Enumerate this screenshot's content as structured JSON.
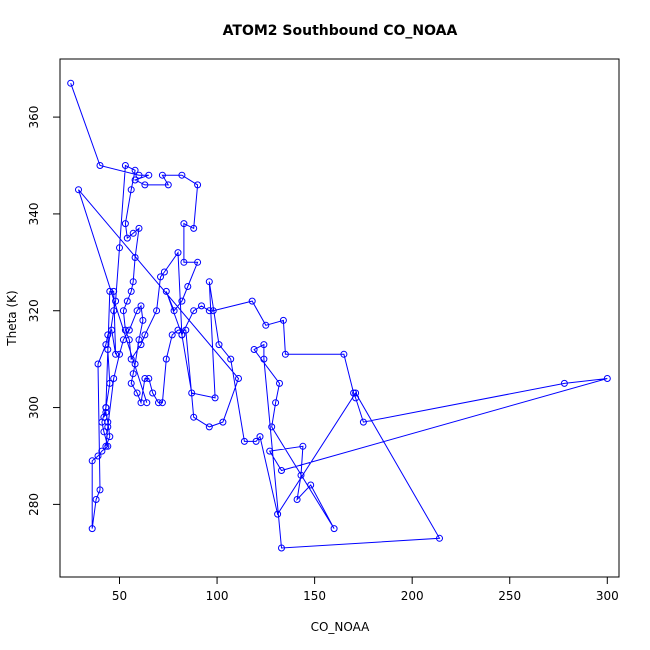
{
  "chart_data": {
    "type": "line",
    "title": "ATOM2 Southbound CO_NOAA",
    "xlabel": "CO_NOAA",
    "ylabel": "Theta (K)",
    "xlim": [
      19.5,
      306
    ],
    "ylim": [
      265,
      372
    ],
    "xticks": [
      50,
      100,
      150,
      200,
      250,
      300
    ],
    "yticks": [
      280,
      300,
      320,
      340,
      360
    ],
    "grid": false,
    "color": "#0000ff",
    "series": [
      {
        "points": [
          [
            25,
            367
          ],
          [
            40,
            350
          ],
          [
            60,
            348
          ],
          [
            65,
            348
          ],
          [
            58,
            347
          ],
          [
            63,
            346
          ],
          [
            75,
            346
          ],
          [
            72,
            348
          ],
          [
            82,
            348
          ],
          [
            90,
            346
          ],
          [
            88,
            337
          ],
          [
            83,
            338
          ],
          [
            83,
            330
          ],
          [
            90,
            330
          ],
          [
            85,
            325
          ],
          [
            82,
            322
          ],
          [
            78,
            320
          ],
          [
            74,
            324
          ],
          [
            82,
            315
          ],
          [
            88,
            320
          ],
          [
            92,
            321
          ],
          [
            96,
            320
          ],
          [
            98,
            320
          ],
          [
            118,
            322
          ],
          [
            125,
            317
          ],
          [
            134,
            318
          ],
          [
            135,
            311
          ],
          [
            165,
            311
          ],
          [
            170,
            303
          ],
          [
            171,
            302
          ],
          [
            175,
            297
          ],
          [
            278,
            305
          ],
          [
            300,
            306
          ],
          [
            133,
            287
          ],
          [
            127,
            291
          ],
          [
            144,
            292
          ],
          [
            143,
            286
          ],
          [
            141,
            281
          ],
          [
            148,
            284
          ],
          [
            160,
            275
          ],
          [
            128,
            296
          ],
          [
            130,
            301
          ],
          [
            132,
            305
          ],
          [
            119,
            312
          ],
          [
            124,
            313
          ],
          [
            124,
            310
          ],
          [
            133,
            271
          ],
          [
            214,
            273
          ],
          [
            171,
            303
          ],
          [
            131,
            278
          ],
          [
            122,
            294
          ],
          [
            120,
            293
          ],
          [
            114,
            293
          ],
          [
            107,
            310
          ],
          [
            101,
            313
          ],
          [
            96,
            326
          ],
          [
            99,
            302
          ],
          [
            87,
            303
          ],
          [
            82,
            315
          ],
          [
            80,
            332
          ],
          [
            73,
            328
          ],
          [
            71,
            327
          ],
          [
            69,
            320
          ],
          [
            63,
            315
          ],
          [
            61,
            313
          ],
          [
            56,
            310
          ],
          [
            55,
            314
          ],
          [
            53,
            316
          ],
          [
            52,
            320
          ],
          [
            54,
            322
          ],
          [
            56,
            324
          ],
          [
            57,
            326
          ],
          [
            58,
            331
          ],
          [
            60,
            337
          ],
          [
            57,
            336
          ],
          [
            54,
            335
          ],
          [
            53,
            338
          ],
          [
            56,
            345
          ],
          [
            58,
            349
          ],
          [
            53,
            350
          ],
          [
            50,
            333
          ],
          [
            48,
            322
          ],
          [
            47,
            320
          ],
          [
            44,
            312
          ],
          [
            45,
            305
          ],
          [
            43,
            300
          ],
          [
            41,
            297
          ],
          [
            42,
            295
          ],
          [
            44,
            292
          ],
          [
            41,
            291
          ],
          [
            39,
            290
          ],
          [
            36,
            289
          ],
          [
            36,
            275
          ],
          [
            38,
            281
          ],
          [
            40,
            283
          ],
          [
            39,
            309
          ],
          [
            43,
            313
          ],
          [
            44,
            315
          ],
          [
            46,
            316
          ],
          [
            48,
            311
          ],
          [
            47,
            324
          ],
          [
            45,
            324
          ],
          [
            43,
            300
          ],
          [
            42,
            298
          ],
          [
            43,
            299
          ],
          [
            44,
            297
          ],
          [
            45,
            294
          ],
          [
            43,
            292
          ],
          [
            44,
            296
          ],
          [
            47,
            306
          ],
          [
            50,
            311
          ],
          [
            52,
            314
          ],
          [
            55,
            316
          ],
          [
            59,
            320
          ],
          [
            61,
            321
          ],
          [
            62,
            318
          ],
          [
            60,
            314
          ],
          [
            58,
            309
          ],
          [
            57,
            307
          ],
          [
            56,
            305
          ],
          [
            59,
            303
          ],
          [
            61,
            301
          ],
          [
            63,
            306
          ],
          [
            65,
            306
          ],
          [
            67,
            303
          ],
          [
            70,
            301
          ],
          [
            72,
            301
          ],
          [
            74,
            310
          ],
          [
            77,
            315
          ],
          [
            80,
            316
          ],
          [
            84,
            316
          ],
          [
            88,
            298
          ],
          [
            96,
            296
          ],
          [
            103,
            297
          ],
          [
            111,
            306
          ],
          [
            29,
            345
          ],
          [
            64,
            301
          ]
        ]
      }
    ]
  }
}
